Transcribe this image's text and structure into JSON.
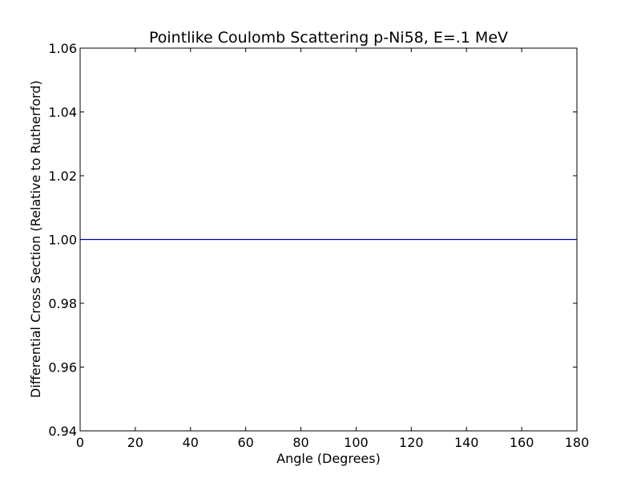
{
  "chart_data": {
    "type": "line",
    "title": "Pointlike Coulomb Scattering p-Ni58, E=.1 MeV",
    "xlabel": "Angle (Degrees)",
    "ylabel": "Differential Cross Section (Relative to Rutherford)",
    "xlim": [
      0,
      180
    ],
    "ylim": [
      0.94,
      1.06
    ],
    "xticks": [
      0,
      20,
      40,
      60,
      80,
      100,
      120,
      140,
      160,
      180
    ],
    "xtick_labels": [
      "0",
      "20",
      "40",
      "60",
      "80",
      "100",
      "120",
      "140",
      "160",
      "180"
    ],
    "yticks": [
      0.94,
      0.96,
      0.98,
      1.0,
      1.02,
      1.04,
      1.06
    ],
    "ytick_labels": [
      "0.94",
      "0.96",
      "0.98",
      "1.00",
      "1.02",
      "1.04",
      "1.06"
    ],
    "grid": false,
    "series": [
      {
        "color": "#0000aa",
        "x": [
          0,
          180
        ],
        "y": [
          1.0,
          1.0
        ]
      }
    ]
  }
}
